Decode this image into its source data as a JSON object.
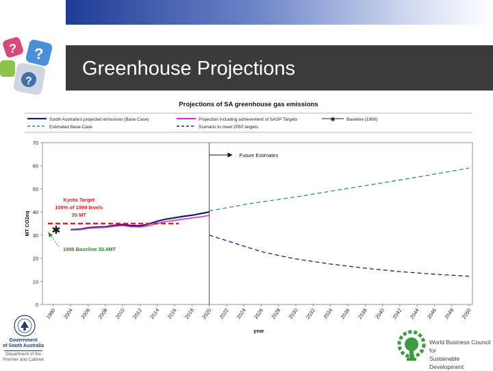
{
  "slide": {
    "title": "Greenhouse Projections"
  },
  "logos": {
    "government_line1": "Government",
    "government_line2": "of South Australia",
    "department_line1": "Department of the",
    "department_line2": "Premier and Cabinet",
    "wbcsd_line1": "World Business Council for",
    "wbcsd_line2": "Sustainable Development"
  },
  "chart_data": {
    "type": "line",
    "title": "Projections of SA greenhouse gas emissions",
    "xlabel": "year",
    "ylabel": "MT CO2eq",
    "ylim": [
      0,
      70
    ],
    "yticks": [
      0,
      10,
      20,
      30,
      40,
      50,
      60,
      70
    ],
    "xlim": [
      1990,
      2050
    ],
    "xticks": [
      "1990",
      "2004",
      "2006",
      "2008",
      "2010",
      "2012",
      "2014",
      "2016",
      "2018",
      "2020",
      "2022",
      "2024",
      "2026",
      "2028",
      "2030",
      "2032",
      "2034",
      "2036",
      "2038",
      "2040",
      "2042",
      "2044",
      "2046",
      "2048",
      "2050"
    ],
    "legend": [
      {
        "id": "actual",
        "label": "South Australia's projected emissions (Base Case)",
        "color": "#1a1a6e",
        "style": "solid"
      },
      {
        "id": "sasp",
        "label": "Projection including achievement of SASP Targets",
        "color": "#cc33cc",
        "style": "solid"
      },
      {
        "id": "baseline",
        "label": "Baseline (1990)",
        "color": "#1a1a1a",
        "style": "star"
      },
      {
        "id": "est",
        "label": "Estimated Base-Case",
        "color": "#2e8b8b",
        "style": "dashed"
      },
      {
        "id": "scenario",
        "label": "Scenario to meet 2050 targets",
        "color": "#1a1a8e",
        "style": "dashed"
      }
    ],
    "series": [
      {
        "id": "actual",
        "name": "South Australia's projected emissions (Base Case)",
        "x": [
          2004,
          2005,
          2006,
          2007,
          2008,
          2009,
          2010,
          2011,
          2012,
          2013,
          2014,
          2015,
          2016,
          2017,
          2018,
          2019,
          2020
        ],
        "y": [
          32.4,
          32.5,
          33.2,
          33.5,
          33.6,
          34.2,
          34.6,
          34.1,
          34.0,
          34.8,
          36.0,
          36.9,
          37.5,
          38.1,
          38.6,
          39.3,
          40.0
        ]
      },
      {
        "id": "sasp",
        "name": "Projection including achievement of SASP Targets",
        "x": [
          2004,
          2005,
          2006,
          2007,
          2008,
          2009,
          2010,
          2011,
          2012,
          2013,
          2014,
          2015,
          2016,
          2017,
          2018,
          2019,
          2020
        ],
        "y": [
          32.2,
          32.3,
          32.9,
          33.2,
          33.3,
          33.8,
          34.1,
          33.6,
          33.5,
          34.0,
          35.1,
          35.9,
          36.4,
          36.9,
          37.4,
          37.9,
          38.5
        ]
      },
      {
        "id": "est",
        "name": "Estimated Base-Case",
        "x": [
          2020,
          2025,
          2030,
          2035,
          2040,
          2045,
          2050
        ],
        "y": [
          40.5,
          43.8,
          46.5,
          49.6,
          52.6,
          55.7,
          59.0
        ]
      },
      {
        "id": "scenario",
        "name": "Scenario to meet 2050 targets",
        "x": [
          2020,
          2022,
          2024,
          2026,
          2028,
          2030,
          2034,
          2038,
          2042,
          2046,
          2050
        ],
        "y": [
          30.0,
          27.6,
          25.2,
          22.9,
          21.2,
          19.7,
          17.5,
          15.7,
          14.2,
          13.1,
          12.2
        ]
      },
      {
        "id": "kyoto",
        "name": "Kyoto Target",
        "x": [
          1990,
          2018
        ],
        "y": [
          35,
          35
        ]
      }
    ],
    "baseline_point": {
      "x": 1990,
      "y": 32.4
    },
    "divider_year": 2020,
    "annotations": {
      "future": "Future Estimates",
      "kyoto_line1": "Kyoto Target",
      "kyoto_line2": "108% of 1990 levels",
      "kyoto_line3": "35 MT",
      "baseline": "1990 Baseline 32.4MT"
    },
    "colors": {
      "kyoto": "#dd2222",
      "annotation_red": "#dd2222",
      "annotation_green": "#228b22"
    }
  }
}
